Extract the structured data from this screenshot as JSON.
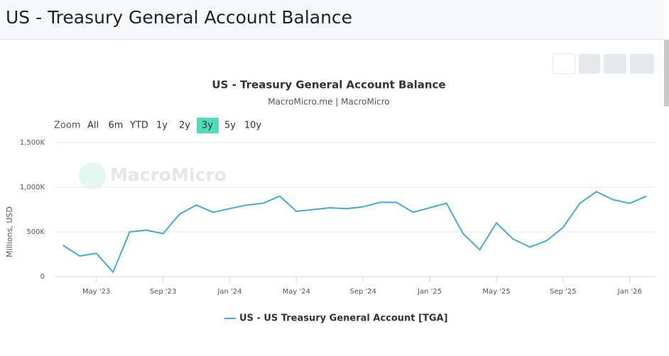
{
  "header": {
    "title": "US - Treasury General Account Balance"
  },
  "range_selector": {
    "label": "Zoom",
    "buttons": [
      "All",
      "6m",
      "YTD",
      "1y",
      "2y",
      "3y",
      "5y",
      "10y"
    ],
    "selected": 5
  },
  "watermark": "MacroMicro",
  "chart_data": {
    "type": "line",
    "title": "US - Treasury General Account Balance",
    "subtitle": "MacroMicro.me | MacroMicro",
    "y_label": "Millions, USD",
    "x": [
      "2023-03",
      "2023-04",
      "2023-05",
      "2023-06",
      "2023-07",
      "2023-08",
      "2023-09",
      "2023-10",
      "2023-11",
      "2023-12",
      "2024-01",
      "2024-02",
      "2024-03",
      "2024-04",
      "2024-05",
      "2024-06",
      "2024-07",
      "2024-08",
      "2024-09",
      "2024-10",
      "2024-11",
      "2024-12",
      "2025-01",
      "2025-02",
      "2025-03",
      "2025-04",
      "2025-05",
      "2025-06",
      "2025-07",
      "2025-08",
      "2025-09",
      "2025-10",
      "2025-11",
      "2025-12",
      "2026-01",
      "2026-02"
    ],
    "series": [
      {
        "name": "US - US Treasury General Account [TGA]",
        "color": "#45aad3",
        "values": [
          350000,
          230000,
          260000,
          50000,
          500000,
          520000,
          480000,
          700000,
          800000,
          720000,
          760000,
          800000,
          820000,
          900000,
          730000,
          750000,
          770000,
          760000,
          780000,
          830000,
          830000,
          720000,
          770000,
          820000,
          480000,
          300000,
          600000,
          420000,
          330000,
          400000,
          550000,
          820000,
          950000,
          860000,
          820000,
          900000
        ]
      }
    ],
    "ylim": [
      0,
      1500000
    ],
    "yticks": [
      0,
      {
        "value": 500000,
        "label": "500K"
      },
      {
        "value": 1000000,
        "label": "1,000K"
      },
      {
        "value": 1500000,
        "label": "1,500K"
      }
    ],
    "xticks": [
      {
        "value": "2023-05",
        "label": "May '23"
      },
      {
        "value": "2023-09",
        "label": "Sep '23"
      },
      {
        "value": "2024-01",
        "label": "Jan '24"
      },
      {
        "value": "2024-05",
        "label": "May '24"
      },
      {
        "value": "2024-09",
        "label": "Sep '24"
      },
      {
        "value": "2025-01",
        "label": "Jan '25"
      },
      {
        "value": "2025-05",
        "label": "May '25"
      },
      {
        "value": "2025-09",
        "label": "Sep '25"
      },
      {
        "value": "2026-01",
        "label": "Jan '26"
      }
    ],
    "grid": true,
    "legend": "bottom"
  }
}
